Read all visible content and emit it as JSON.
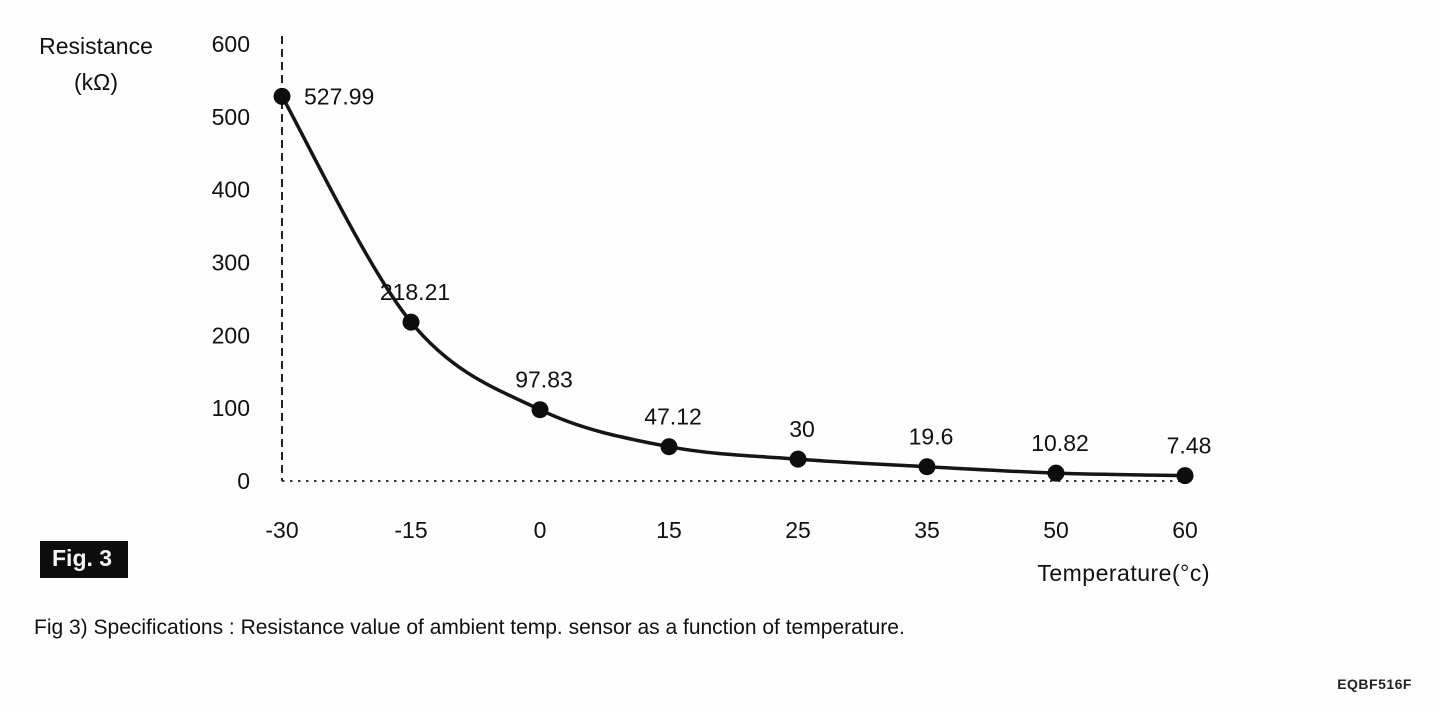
{
  "figure": {
    "fig_badge": "Fig. 3",
    "caption": "Fig 3) Specifications : Resistance value of ambient temp. sensor as a function of temperature.",
    "doc_code": "EQBF516F"
  },
  "chart_data": {
    "type": "line",
    "title": "",
    "ylabel_line1": "Resistance",
    "ylabel_line2": "(kΩ)",
    "xlabel": "Temperature(°c)",
    "categories": [
      "-30",
      "-15",
      "0",
      "15",
      "25",
      "35",
      "50",
      "60"
    ],
    "values": [
      527.99,
      218.21,
      97.83,
      47.12,
      30,
      19.6,
      10.82,
      7.48
    ],
    "point_labels": [
      "527.99",
      "218.21",
      "97.83",
      "47.12",
      "30",
      "19.6",
      "10.82",
      "7.48"
    ],
    "y_ticks": [
      0,
      100,
      200,
      300,
      400,
      500,
      600
    ],
    "ylim": [
      0,
      600
    ],
    "grid": false,
    "legend": "none",
    "line_color": "#151515",
    "marker_color": "#0d0d0d",
    "axis_style": "dashed"
  }
}
